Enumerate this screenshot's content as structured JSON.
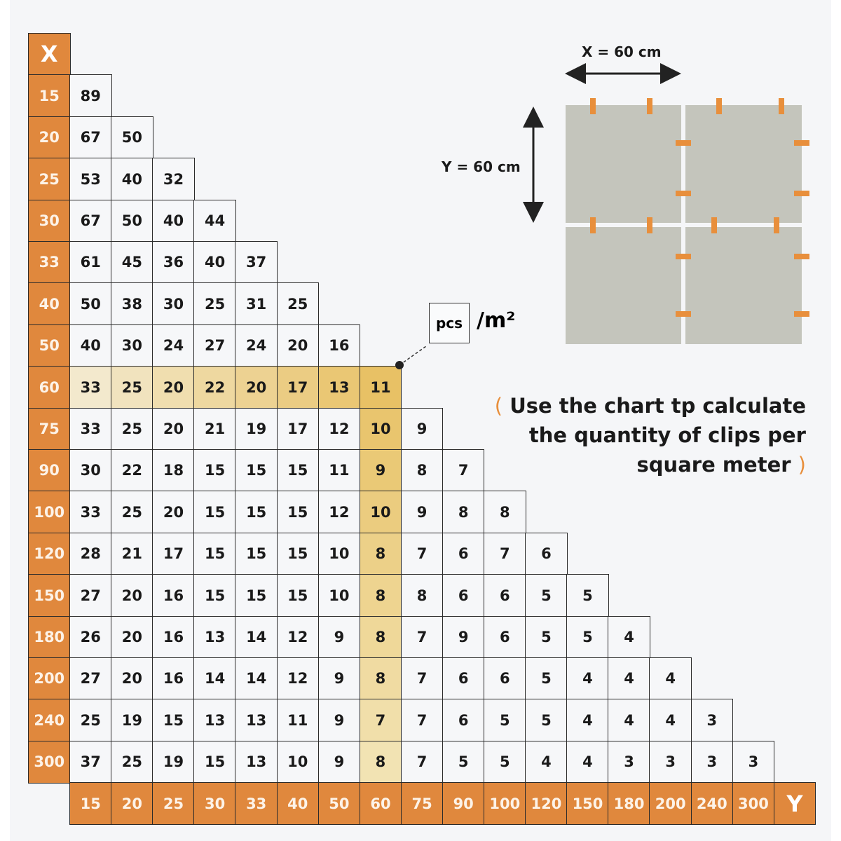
{
  "chart_data": {
    "type": "table",
    "x_axis_label": "X",
    "y_axis_label": "Y",
    "x_values": [
      "15",
      "20",
      "25",
      "30",
      "33",
      "40",
      "50",
      "60",
      "75",
      "90",
      "100",
      "120",
      "150",
      "180",
      "200",
      "240",
      "300"
    ],
    "y_values": [
      "15",
      "20",
      "25",
      "30",
      "33",
      "40",
      "50",
      "60",
      "75",
      "90",
      "100",
      "120",
      "150",
      "180",
      "200",
      "240",
      "300"
    ],
    "rows": [
      [
        89
      ],
      [
        67,
        50
      ],
      [
        53,
        40,
        32
      ],
      [
        67,
        50,
        40,
        44
      ],
      [
        61,
        45,
        36,
        40,
        37
      ],
      [
        50,
        38,
        30,
        25,
        31,
        25
      ],
      [
        40,
        30,
        24,
        27,
        24,
        20,
        16
      ],
      [
        33,
        25,
        20,
        22,
        20,
        17,
        13,
        11
      ],
      [
        33,
        25,
        20,
        21,
        19,
        17,
        12,
        10,
        9
      ],
      [
        30,
        22,
        18,
        15,
        15,
        15,
        11,
        9,
        8,
        7
      ],
      [
        33,
        25,
        20,
        15,
        15,
        15,
        12,
        10,
        9,
        8,
        8
      ],
      [
        28,
        21,
        17,
        15,
        15,
        15,
        10,
        8,
        7,
        6,
        7,
        6
      ],
      [
        27,
        20,
        16,
        15,
        15,
        15,
        10,
        8,
        8,
        6,
        6,
        5,
        5
      ],
      [
        26,
        20,
        16,
        13,
        14,
        12,
        9,
        8,
        7,
        9,
        6,
        5,
        5,
        4
      ],
      [
        27,
        20,
        16,
        14,
        14,
        12,
        9,
        8,
        7,
        6,
        6,
        5,
        4,
        4,
        4
      ],
      [
        25,
        19,
        15,
        13,
        13,
        11,
        9,
        7,
        7,
        6,
        5,
        5,
        4,
        4,
        4,
        3
      ],
      [
        37,
        25,
        19,
        15,
        13,
        10,
        9,
        8,
        7,
        5,
        5,
        4,
        4,
        3,
        3,
        3,
        3
      ]
    ],
    "highlight": {
      "x": "60",
      "y": "60",
      "value": 11
    },
    "colors": {
      "header": "#e0883d",
      "highlight": "#e8c165",
      "tile": "#c4c5bc",
      "clip": "#e88f3c"
    }
  },
  "unit": {
    "box": "pcs",
    "suffix": "/m²"
  },
  "diagram": {
    "x_label": "X = 60 cm",
    "y_label": "Y = 60 cm"
  },
  "note": {
    "open": "(",
    "line1": "Use the chart tp calculate",
    "line2": "the quantity of clips per",
    "line3": "square meter",
    "close": ")"
  }
}
